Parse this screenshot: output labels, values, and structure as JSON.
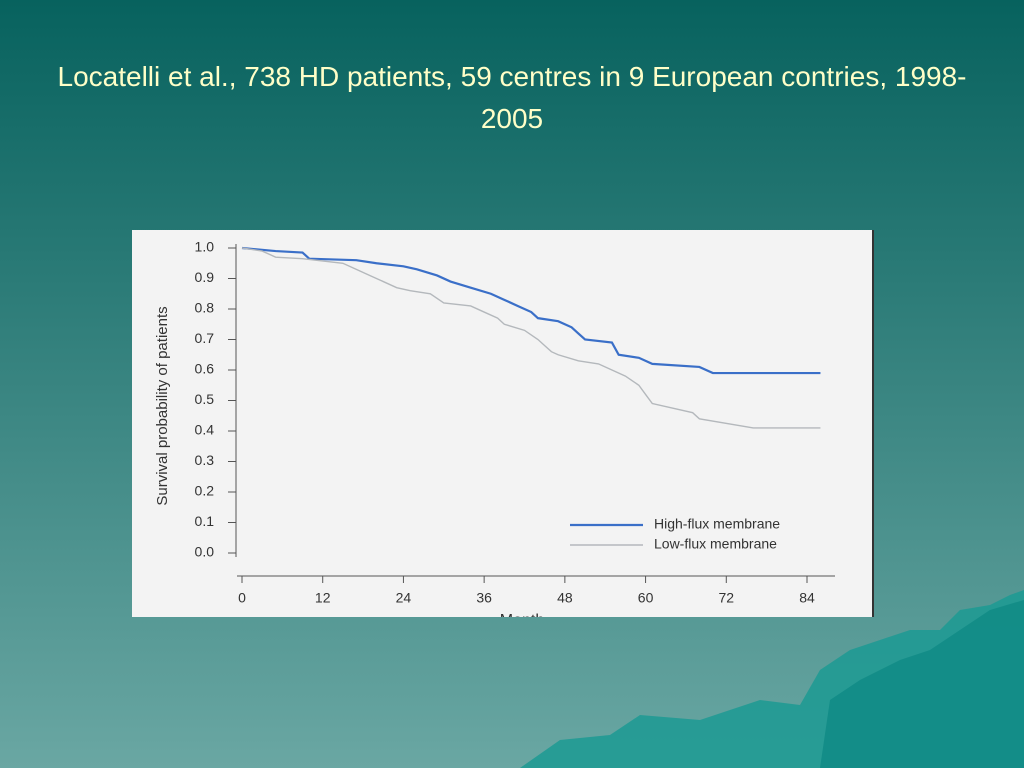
{
  "chart_data": {
    "type": "line",
    "title": "Locatelli et al., 738 HD patients, 59 centres in  9 European contries, 1998-2005",
    "x_label": "Month",
    "y_label": "Survival probability of patients",
    "xlim": [
      0,
      84
    ],
    "xticks": [
      0,
      12,
      24,
      36,
      48,
      60,
      72,
      84
    ],
    "ylim": [
      0,
      1
    ],
    "yticks": [
      {
        "value": 0,
        "label": "0.0"
      },
      0.1,
      0.2,
      0.3,
      0.4,
      0.5,
      0.6,
      0.7,
      0.8,
      0.9,
      {
        "value": 1,
        "label": "1.0"
      }
    ],
    "series": [
      {
        "name": "High-flux membrane",
        "color": "#3a6fc8",
        "x": [
          0,
          5,
          9,
          10,
          17,
          20,
          24,
          26,
          29,
          31,
          34,
          37,
          39,
          41,
          43,
          44,
          47,
          49,
          50,
          51,
          55,
          56,
          59,
          61,
          68,
          70,
          86
        ],
        "values": [
          1.0,
          0.99,
          0.985,
          0.965,
          0.96,
          0.95,
          0.94,
          0.93,
          0.91,
          0.89,
          0.87,
          0.85,
          0.83,
          0.81,
          0.79,
          0.77,
          0.76,
          0.74,
          0.72,
          0.7,
          0.69,
          0.65,
          0.64,
          0.62,
          0.61,
          0.59,
          0.59
        ]
      },
      {
        "name": "Low-flux membrane",
        "color": "#b4b8bc",
        "x": [
          0,
          3,
          5,
          9,
          15,
          17,
          19,
          21,
          23,
          25,
          28,
          30,
          34,
          36,
          38,
          39,
          42,
          44,
          45,
          46,
          47,
          50,
          53,
          55,
          57,
          59,
          60,
          61,
          67,
          68,
          76,
          86
        ],
        "values": [
          1.0,
          0.99,
          0.97,
          0.965,
          0.95,
          0.93,
          0.91,
          0.89,
          0.87,
          0.86,
          0.85,
          0.82,
          0.81,
          0.79,
          0.77,
          0.75,
          0.73,
          0.7,
          0.68,
          0.66,
          0.65,
          0.63,
          0.62,
          0.6,
          0.58,
          0.55,
          0.52,
          0.49,
          0.46,
          0.44,
          0.41,
          0.41
        ]
      }
    ]
  }
}
